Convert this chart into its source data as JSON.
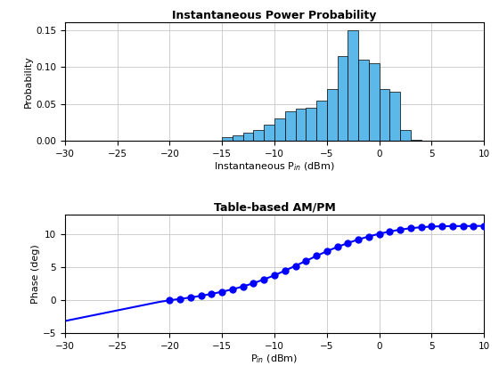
{
  "hist_title": "Instantaneous Power Probability",
  "hist_xlabel": "Instantaneous P$_{in}$ (dBm)",
  "hist_ylabel": "Probability",
  "hist_xlim": [
    -30,
    10
  ],
  "hist_ylim": [
    0,
    0.16
  ],
  "hist_yticks": [
    0,
    0.05,
    0.1,
    0.15
  ],
  "hist_xticks": [
    -30,
    -25,
    -20,
    -15,
    -10,
    -5,
    0,
    5,
    10
  ],
  "hist_bin_centers": [
    -14.5,
    -13.5,
    -12.5,
    -11.5,
    -10.5,
    -9.5,
    -8.5,
    -7.5,
    -6.5,
    -5.5,
    -4.5,
    -3.5,
    -2.5,
    -1.5,
    -0.5,
    0.5,
    1.5,
    2.5,
    3.5
  ],
  "hist_values": [
    0.005,
    0.007,
    0.011,
    0.015,
    0.022,
    0.03,
    0.04,
    0.044,
    0.045,
    0.055,
    0.07,
    0.115,
    0.15,
    0.11,
    0.105,
    0.07,
    0.067,
    0.015,
    0.002
  ],
  "hist_bar_color": "#5BB8E8",
  "hist_bar_edge_color": "#000000",
  "ampm_title": "Table-based AM/PM",
  "ampm_xlabel": "P$_{in}$ (dBm)",
  "ampm_ylabel": "Phase (deg)",
  "ampm_xlim": [
    -30,
    10
  ],
  "ampm_ylim": [
    -5,
    13
  ],
  "ampm_yticks": [
    -5,
    0,
    5,
    10
  ],
  "ampm_xticks": [
    -30,
    -25,
    -20,
    -15,
    -10,
    -5,
    0,
    5,
    10
  ],
  "ampm_line_x": [
    -30,
    -21,
    -20,
    -19,
    -18,
    -17,
    -16,
    -15,
    -14,
    -13,
    -12,
    -11,
    -10,
    -9,
    -8,
    -7,
    -6,
    -5,
    -4,
    -3,
    -2,
    -1,
    0,
    1,
    2,
    3,
    4,
    5,
    6,
    7,
    8,
    9,
    10
  ],
  "ampm_line_y": [
    -3.2,
    -0.3,
    -0.05,
    0.15,
    0.38,
    0.63,
    0.92,
    1.25,
    1.62,
    2.05,
    2.55,
    3.12,
    3.75,
    4.45,
    5.18,
    5.93,
    6.68,
    7.4,
    8.05,
    8.65,
    9.18,
    9.65,
    10.05,
    10.4,
    10.68,
    10.9,
    11.05,
    11.15,
    11.2,
    11.22,
    11.23,
    11.24,
    11.25
  ],
  "ampm_dot_x": [
    -20,
    -19,
    -18,
    -17,
    -16,
    -15,
    -14,
    -13,
    -12,
    -11,
    -10,
    -9,
    -8,
    -7,
    -6,
    -5,
    -4,
    -3,
    -2,
    -1,
    0,
    1,
    2,
    3,
    4,
    5,
    6,
    7,
    8,
    9,
    10
  ],
  "ampm_dot_y": [
    -0.05,
    0.15,
    0.38,
    0.63,
    0.92,
    1.25,
    1.62,
    2.05,
    2.55,
    3.12,
    3.75,
    4.45,
    5.18,
    5.93,
    6.68,
    7.4,
    8.05,
    8.65,
    9.18,
    9.65,
    10.05,
    10.4,
    10.68,
    10.9,
    11.05,
    11.15,
    11.2,
    11.22,
    11.23,
    11.24,
    11.25
  ],
  "ampm_line_color": "#0000FF",
  "ampm_dot_color": "#0000FF",
  "background_color": "#FFFFFF",
  "grid_color": "#C8C8C8"
}
